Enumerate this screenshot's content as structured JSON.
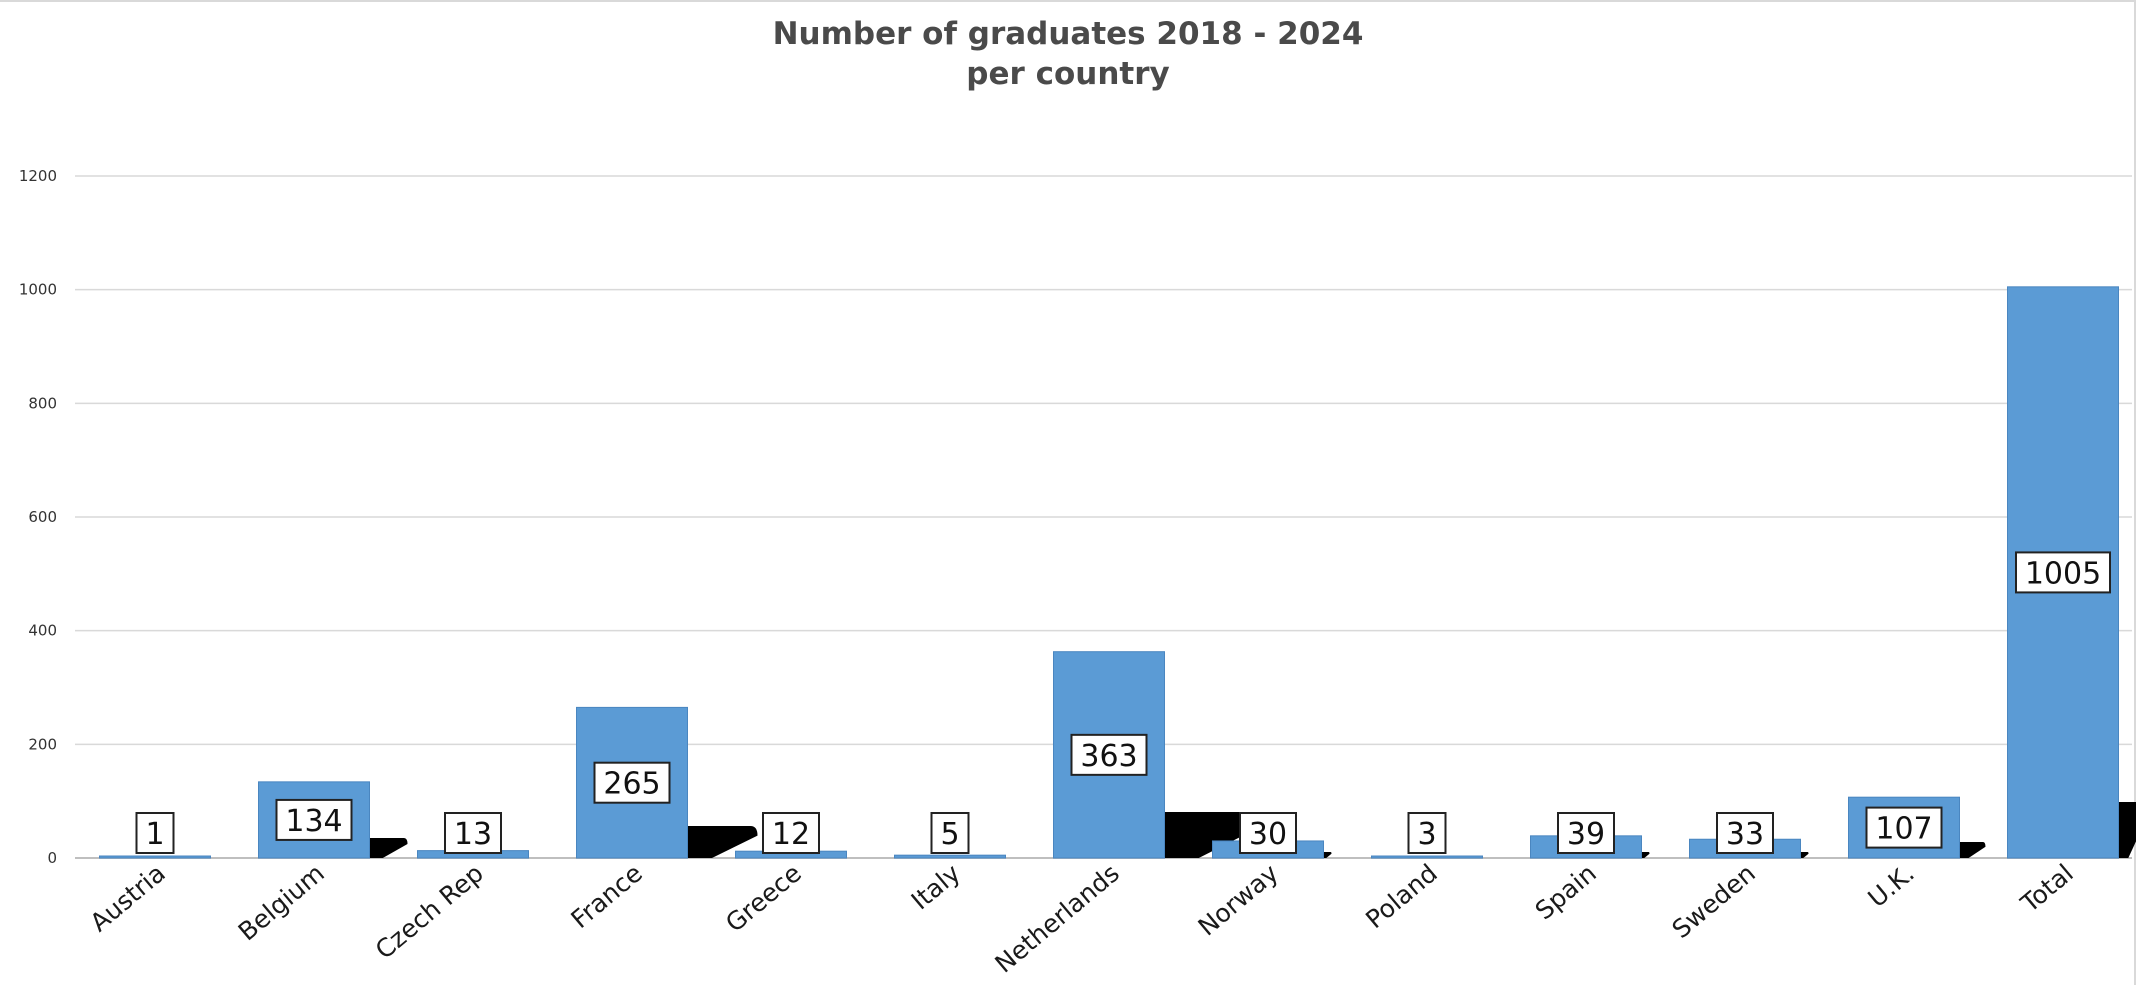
{
  "chart_data": {
    "type": "bar",
    "title_lines": [
      "Number of graduates 2018 - 2024",
      "per country"
    ],
    "xlabel": "",
    "ylabel": "",
    "categories": [
      "Austria",
      "Belgium",
      "Czech Rep",
      "France",
      "Greece",
      "Italy",
      "Netherlands",
      "Norway",
      "Poland",
      "Spain",
      "Sweden",
      "U.K.",
      "Total"
    ],
    "values": [
      1,
      134,
      13,
      265,
      12,
      5,
      363,
      30,
      3,
      39,
      33,
      107,
      1005
    ],
    "data_labels": [
      "1",
      "134",
      "13",
      "265",
      "12",
      "5",
      "363",
      "30",
      "3",
      "39",
      "33",
      "107",
      "1005"
    ],
    "yticks": [
      0,
      200,
      400,
      600,
      800,
      1000,
      1200
    ],
    "ytick_labels": [
      "0",
      "200",
      "400",
      "600",
      "800",
      "1000",
      "1200"
    ],
    "ylim": [
      0,
      1200
    ],
    "grid": true,
    "legend": "none",
    "bar_color": "#5b9bd5",
    "grid_color": "#d9d9d9",
    "axis_color": "#bfbfbf",
    "shadow_color": "#000000"
  }
}
